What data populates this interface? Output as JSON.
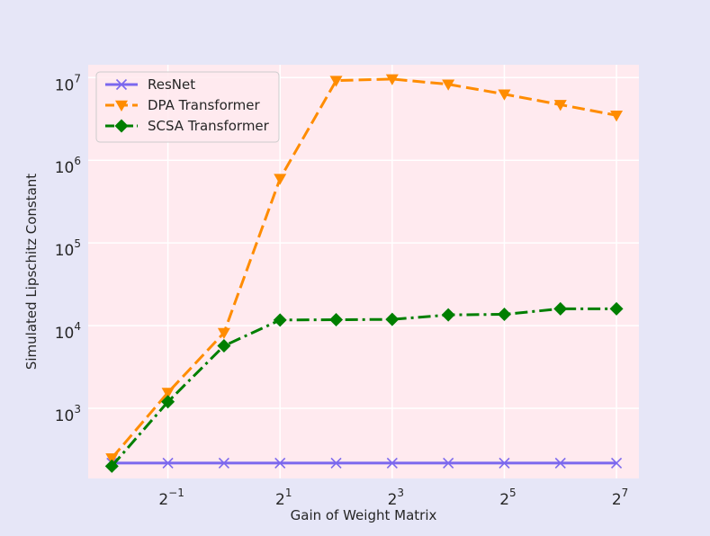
{
  "chart_data": {
    "type": "line",
    "xlabel": "Gain of Weight Matrix",
    "ylabel": "Simulated Lipschitz Constant",
    "x_scale": "log2",
    "y_scale": "log10",
    "x": [
      0.25,
      0.5,
      1,
      2,
      4,
      8,
      16,
      32,
      64,
      128
    ],
    "xlim": [
      0.1866,
      168.9
    ],
    "ylim": [
      142,
      14300000
    ],
    "x_ticks": [
      {
        "value": 0.5,
        "base": "2",
        "exp": "−1"
      },
      {
        "value": 2,
        "base": "2",
        "exp": "1"
      },
      {
        "value": 8,
        "base": "2",
        "exp": "3"
      },
      {
        "value": 32,
        "base": "2",
        "exp": "5"
      },
      {
        "value": 128,
        "base": "2",
        "exp": "7"
      }
    ],
    "y_ticks": [
      {
        "value": 1000,
        "base": "10",
        "exp": "3"
      },
      {
        "value": 10000,
        "base": "10",
        "exp": "4"
      },
      {
        "value": 100000,
        "base": "10",
        "exp": "5"
      },
      {
        "value": 1000000,
        "base": "10",
        "exp": "6"
      },
      {
        "value": 10000000,
        "base": "10",
        "exp": "7"
      }
    ],
    "grid": true,
    "legend_position": "top-left",
    "series": [
      {
        "name": "ResNet",
        "color": "#7b68ee",
        "marker": "x",
        "linestyle": "solid",
        "values": [
          218,
          218,
          218,
          218,
          218,
          218,
          218,
          218,
          218,
          218
        ]
      },
      {
        "name": "DPA Transformer",
        "color": "#ff8c00",
        "marker": "triangle-down",
        "linestyle": "dashed",
        "values": [
          250,
          1550,
          8200,
          600000,
          9200000,
          9600000,
          8300000,
          6300000,
          4700000,
          3500000
        ]
      },
      {
        "name": "SCSA Transformer",
        "color": "#007f00",
        "marker": "diamond",
        "linestyle": "dashdot",
        "values": [
          200,
          1200,
          5700,
          11700,
          11800,
          11900,
          13500,
          13700,
          16000,
          16000
        ]
      }
    ]
  }
}
